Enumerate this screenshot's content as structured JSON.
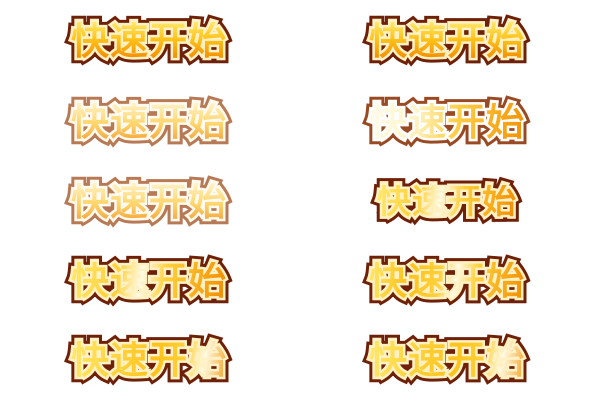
{
  "sprite_sheet": {
    "label_text": "快速开始",
    "frames": [
      {
        "id": "frame-1",
        "variant": "normal"
      },
      {
        "id": "frame-2",
        "variant": "normal"
      },
      {
        "id": "frame-3",
        "variant": "faded"
      },
      {
        "id": "frame-4",
        "variant": "glow"
      },
      {
        "id": "frame-5",
        "variant": "faded"
      },
      {
        "id": "frame-6",
        "variant": "shine-1"
      },
      {
        "id": "frame-7",
        "variant": "shine-1"
      },
      {
        "id": "frame-8",
        "variant": "shine-2"
      },
      {
        "id": "frame-9",
        "variant": "shine-3"
      },
      {
        "id": "frame-10",
        "variant": "shine-3"
      }
    ],
    "colors": {
      "fill_top": "#ffe86a",
      "fill_mid": "#ffc21a",
      "fill_bottom": "#f28a00",
      "outline": "#6e2108",
      "halo": "#fff1c4",
      "highlight": "#fffbe6",
      "background": "#ffffff"
    }
  }
}
